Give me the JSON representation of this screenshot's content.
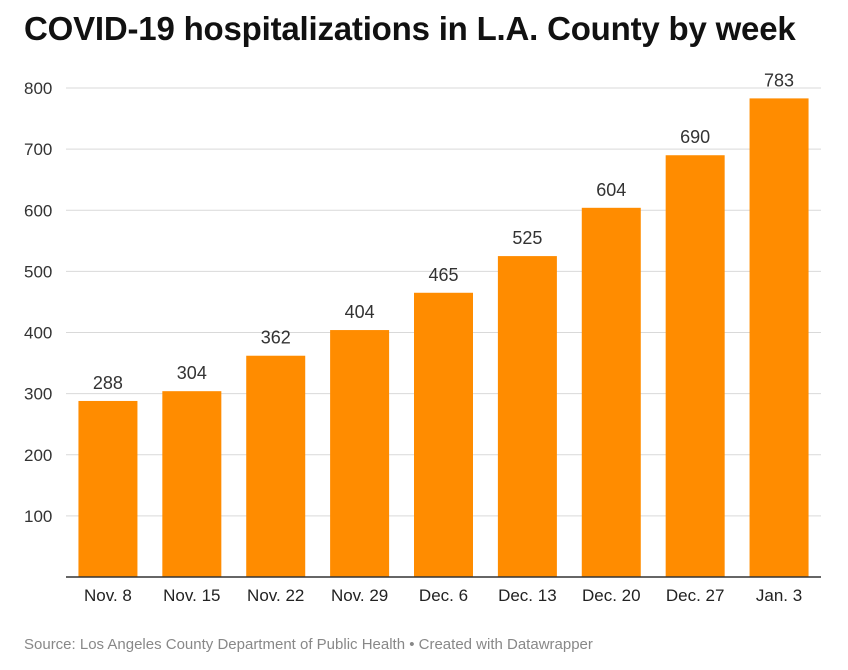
{
  "chart_data": {
    "type": "bar",
    "title": "COVID-19 hospitalizations in L.A. County by week",
    "categories": [
      "Nov. 8",
      "Nov. 15",
      "Nov. 22",
      "Nov. 29",
      "Dec. 6",
      "Dec. 13",
      "Dec. 20",
      "Dec. 27",
      "Jan. 3"
    ],
    "values": [
      288,
      304,
      362,
      404,
      465,
      525,
      604,
      690,
      783
    ],
    "ylim": [
      0,
      800
    ],
    "yticks": [
      100,
      200,
      300,
      400,
      500,
      600,
      700,
      800
    ],
    "grid": true,
    "bar_color": "#ff8c00",
    "value_labels": true,
    "source": "Source: Los Angeles County Department of Public Health • Created with Datawrapper"
  }
}
